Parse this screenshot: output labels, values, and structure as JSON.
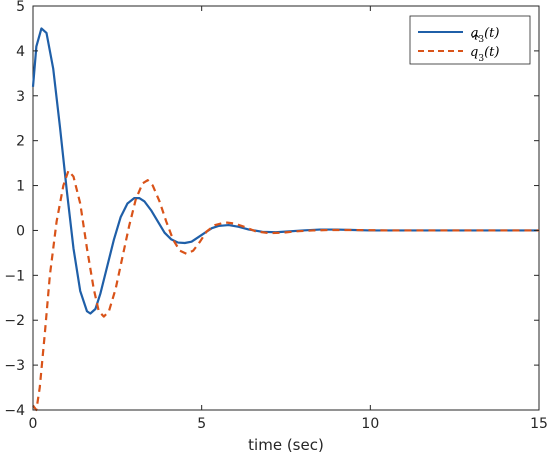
{
  "chart_data": {
    "type": "line",
    "xlabel": "time (sec)",
    "ylabel": "",
    "xlim": [
      0,
      15
    ],
    "ylim": [
      -4,
      5
    ],
    "xticks": [
      0,
      5,
      10,
      15
    ],
    "yticks": [
      -4,
      -3,
      -2,
      -1,
      0,
      1,
      2,
      3,
      4,
      5
    ],
    "grid": false,
    "legend_position": "top-right",
    "series": [
      {
        "name": "q3(t)",
        "color": "#1f5fa8",
        "style": "solid",
        "points": [
          [
            0.0,
            3.2
          ],
          [
            0.1,
            4.1
          ],
          [
            0.25,
            4.5
          ],
          [
            0.4,
            4.4
          ],
          [
            0.6,
            3.6
          ],
          [
            0.8,
            2.3
          ],
          [
            1.0,
            0.9
          ],
          [
            1.2,
            -0.4
          ],
          [
            1.4,
            -1.35
          ],
          [
            1.6,
            -1.8
          ],
          [
            1.7,
            -1.85
          ],
          [
            1.85,
            -1.75
          ],
          [
            2.0,
            -1.4
          ],
          [
            2.2,
            -0.8
          ],
          [
            2.4,
            -0.2
          ],
          [
            2.6,
            0.3
          ],
          [
            2.8,
            0.6
          ],
          [
            3.0,
            0.72
          ],
          [
            3.15,
            0.72
          ],
          [
            3.3,
            0.65
          ],
          [
            3.5,
            0.45
          ],
          [
            3.7,
            0.2
          ],
          [
            3.9,
            -0.05
          ],
          [
            4.1,
            -0.2
          ],
          [
            4.3,
            -0.27
          ],
          [
            4.5,
            -0.28
          ],
          [
            4.7,
            -0.25
          ],
          [
            4.9,
            -0.15
          ],
          [
            5.1,
            -0.05
          ],
          [
            5.3,
            0.05
          ],
          [
            5.5,
            0.1
          ],
          [
            5.8,
            0.12
          ],
          [
            6.1,
            0.08
          ],
          [
            6.4,
            0.02
          ],
          [
            6.8,
            -0.03
          ],
          [
            7.2,
            -0.04
          ],
          [
            7.6,
            -0.02
          ],
          [
            8.0,
            0.0
          ],
          [
            8.5,
            0.02
          ],
          [
            9.0,
            0.02
          ],
          [
            9.5,
            0.01
          ],
          [
            10.0,
            0.0
          ],
          [
            11.0,
            0.0
          ],
          [
            12.0,
            0.0
          ],
          [
            13.0,
            0.0
          ],
          [
            14.0,
            0.0
          ],
          [
            15.0,
            0.0
          ]
        ]
      },
      {
        "name": "q̂3(t)",
        "color": "#d95319",
        "style": "dashed",
        "points": [
          [
            0.0,
            -3.9
          ],
          [
            0.1,
            -4.0
          ],
          [
            0.2,
            -3.5
          ],
          [
            0.35,
            -2.3
          ],
          [
            0.5,
            -1.0
          ],
          [
            0.7,
            0.2
          ],
          [
            0.9,
            1.0
          ],
          [
            1.05,
            1.33
          ],
          [
            1.2,
            1.2
          ],
          [
            1.4,
            0.6
          ],
          [
            1.6,
            -0.4
          ],
          [
            1.8,
            -1.3
          ],
          [
            1.95,
            -1.8
          ],
          [
            2.1,
            -1.92
          ],
          [
            2.25,
            -1.8
          ],
          [
            2.45,
            -1.3
          ],
          [
            2.65,
            -0.6
          ],
          [
            2.85,
            0.1
          ],
          [
            3.05,
            0.7
          ],
          [
            3.25,
            1.05
          ],
          [
            3.4,
            1.12
          ],
          [
            3.55,
            1.0
          ],
          [
            3.75,
            0.65
          ],
          [
            3.95,
            0.2
          ],
          [
            4.15,
            -0.2
          ],
          [
            4.35,
            -0.45
          ],
          [
            4.55,
            -0.52
          ],
          [
            4.75,
            -0.45
          ],
          [
            4.95,
            -0.25
          ],
          [
            5.15,
            -0.02
          ],
          [
            5.4,
            0.12
          ],
          [
            5.7,
            0.18
          ],
          [
            6.0,
            0.15
          ],
          [
            6.3,
            0.07
          ],
          [
            6.6,
            -0.02
          ],
          [
            7.0,
            -0.06
          ],
          [
            7.4,
            -0.05
          ],
          [
            7.8,
            -0.02
          ],
          [
            8.3,
            0.0
          ],
          [
            8.8,
            0.01
          ],
          [
            9.5,
            0.01
          ],
          [
            10.5,
            0.0
          ],
          [
            11.5,
            0.0
          ],
          [
            12.5,
            0.0
          ],
          [
            13.5,
            0.0
          ],
          [
            15.0,
            0.0
          ]
        ]
      }
    ]
  },
  "legend": {
    "entries": [
      {
        "base": "q",
        "sub": "3",
        "arg": "(t)",
        "hat": false
      },
      {
        "base": "q",
        "sub": "3",
        "arg": "(t)",
        "hat": true
      }
    ]
  }
}
